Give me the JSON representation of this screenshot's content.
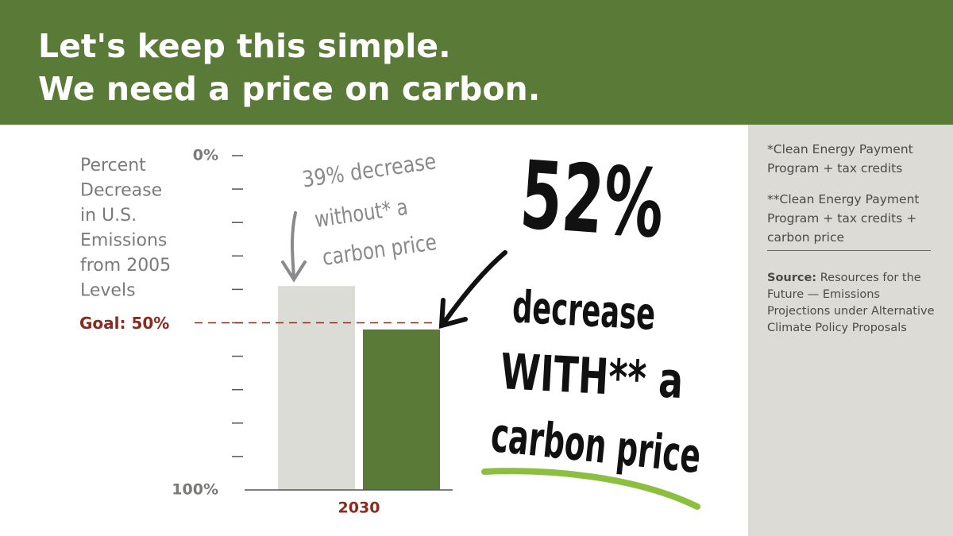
{
  "title_lines": [
    "Let's keep this simple.",
    "We need a price on carbon."
  ],
  "chart_data": {
    "type": "bar",
    "y_label": [
      "Percent",
      "Decrease",
      "in U.S.",
      "Emissions",
      "from 2005",
      "Levels"
    ],
    "categories": [
      "2030"
    ],
    "series": [
      {
        "color": "#dcdcd6",
        "values": [
          39
        ]
      },
      {
        "color": "#5a7a37",
        "values": [
          52
        ]
      }
    ],
    "ylim": [
      0,
      100
    ],
    "inverted": true,
    "yticks": [
      {
        "value": 0,
        "label": "0%"
      },
      {
        "value": 100,
        "label": "100%"
      }
    ],
    "minor_yticks": [
      10,
      20,
      30,
      40,
      50,
      60,
      70,
      80,
      90
    ],
    "goal": {
      "value": 50,
      "label": "Goal: 50%"
    },
    "annotations": [
      {
        "lines": [
          "39% decrease",
          "without* a",
          "carbon price"
        ]
      },
      {
        "lines": [
          "52%",
          "decrease",
          "WITH** a",
          "carbon price"
        ]
      }
    ]
  },
  "notes": [
    "*Clean Energy Payment Program + tax credits",
    "**Clean Energy Payment Program + tax credits + carbon price"
  ],
  "source": {
    "label": "Source:",
    "text": "Resources for the Future — Emissions Projections under Alternative Climate Policy Proposals"
  }
}
